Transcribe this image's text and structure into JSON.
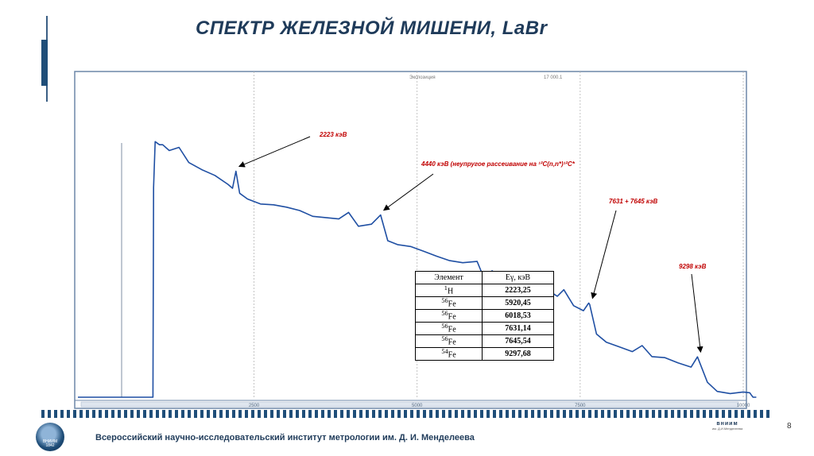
{
  "slide": {
    "title": "СПЕКТР ЖЕЛЕЗНОЙ МИШЕНИ,  LaBr",
    "page_number": "8",
    "footer_text": "Всероссийский научно-исследовательский институт метрологии им. Д. И. Менделеева",
    "logo_left_text": [
      "ВНИИМ",
      "1842"
    ],
    "logo_right_brand": "вниим",
    "logo_right_sub": "им. Д.И.Менделеева"
  },
  "chart_data": {
    "type": "line",
    "title": "",
    "xlabel": "",
    "ylabel": "",
    "xlim": [
      -200,
      10000
    ],
    "ylim": [
      0,
      1
    ],
    "x_ticks": [
      2500,
      5000,
      7500,
      10000
    ],
    "x_tick_labels": [
      "2500",
      "5000",
      "7500",
      "10000"
    ],
    "grid": "vertical dashed",
    "hud_labels": [
      "Экспозиция",
      "17 000.1"
    ],
    "series": [
      {
        "color": "#1f4fa3",
        "x": [
          -200,
          950,
          960,
          985,
          1050,
          1100,
          1200,
          1350,
          1500,
          1700,
          1900,
          2100,
          2170,
          2223,
          2280,
          2400,
          2600,
          2800,
          3000,
          3200,
          3400,
          3600,
          3800,
          3950,
          4100,
          4300,
          4440,
          4550,
          4700,
          4900,
          5100,
          5300,
          5500,
          5700,
          5920,
          6018,
          6150,
          6400,
          6650,
          6900,
          7150,
          7250,
          7400,
          7550,
          7631,
          7645,
          7750,
          7900,
          8100,
          8300,
          8450,
          8600,
          8800,
          9000,
          9200,
          9298,
          9450,
          9600,
          9800,
          10000,
          10100,
          10120,
          10150,
          10200
        ],
        "y": [
          0,
          0,
          0.8,
          0.975,
          0.963,
          0.963,
          0.941,
          0.953,
          0.895,
          0.868,
          0.846,
          0.812,
          0.797,
          0.862,
          0.778,
          0.756,
          0.737,
          0.734,
          0.725,
          0.712,
          0.69,
          0.685,
          0.68,
          0.705,
          0.652,
          0.66,
          0.695,
          0.597,
          0.582,
          0.575,
          0.557,
          0.538,
          0.521,
          0.513,
          0.518,
          0.459,
          0.482,
          0.43,
          0.415,
          0.425,
          0.385,
          0.41,
          0.349,
          0.33,
          0.359,
          0.354,
          0.241,
          0.21,
          0.192,
          0.174,
          0.197,
          0.155,
          0.151,
          0.131,
          0.115,
          0.154,
          0.057,
          0.022,
          0.014,
          0.02,
          0.017,
          0.01,
          0,
          0
        ]
      }
    ],
    "annotations": [
      {
        "text": "2223 кэВ",
        "arrow_to": [
          2223,
          0.862
        ]
      },
      {
        "text": "4440 кэВ (неупругое рассеивание на ¹²C(n,n*)¹²C*",
        "arrow_to": [
          4440,
          0.695
        ]
      },
      {
        "text": "7631 + 7645 кэВ",
        "arrow_to": [
          7640,
          0.359
        ]
      },
      {
        "text": "9298 кэВ",
        "arrow_to": [
          9298,
          0.154
        ]
      }
    ],
    "table": {
      "headers": [
        "Элемент",
        "Eγ, кэВ"
      ],
      "rows": [
        {
          "mass": "1",
          "element": "H",
          "energy": "2223,25"
        },
        {
          "mass": "56",
          "element": "Fe",
          "energy": "5920,45"
        },
        {
          "mass": "56",
          "element": "Fe",
          "energy": "6018,53"
        },
        {
          "mass": "56",
          "element": "Fe",
          "energy": "7631,14"
        },
        {
          "mass": "56",
          "element": "Fe",
          "energy": "7645,54"
        },
        {
          "mass": "54",
          "element": "Fe",
          "energy": "9297,68"
        }
      ]
    }
  }
}
